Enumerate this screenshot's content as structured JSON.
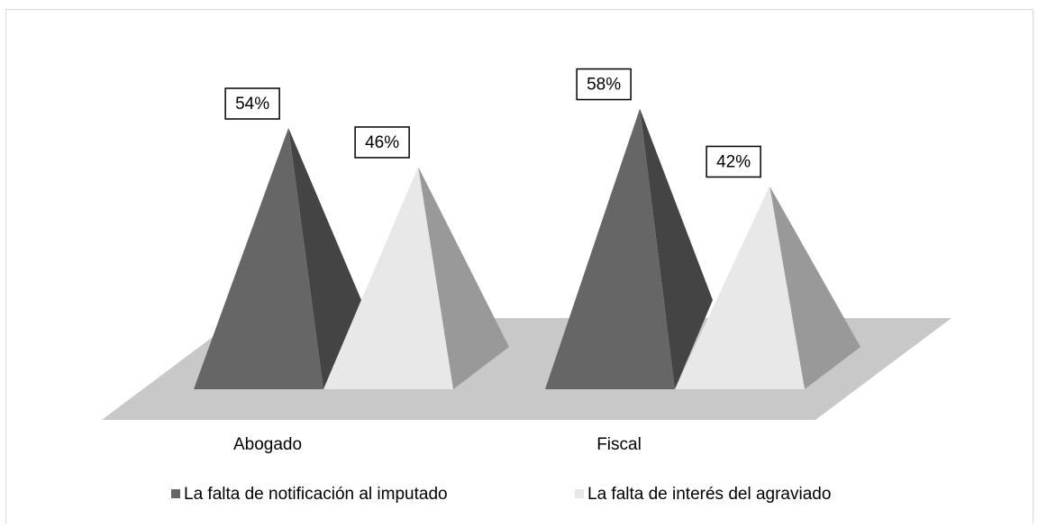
{
  "chart_data": {
    "type": "pyramid3d",
    "categories": [
      "Abogado",
      "Fiscal"
    ],
    "series": [
      {
        "name": "La falta de notificación al imputado",
        "color": "#666666",
        "values": [
          54,
          58
        ],
        "value_labels": [
          "54%",
          "58%"
        ]
      },
      {
        "name": "La falta de interés del agraviado",
        "color": "#e8e8e8",
        "values": [
          46,
          42
        ],
        "value_labels": [
          "46%",
          "42%"
        ]
      }
    ]
  }
}
